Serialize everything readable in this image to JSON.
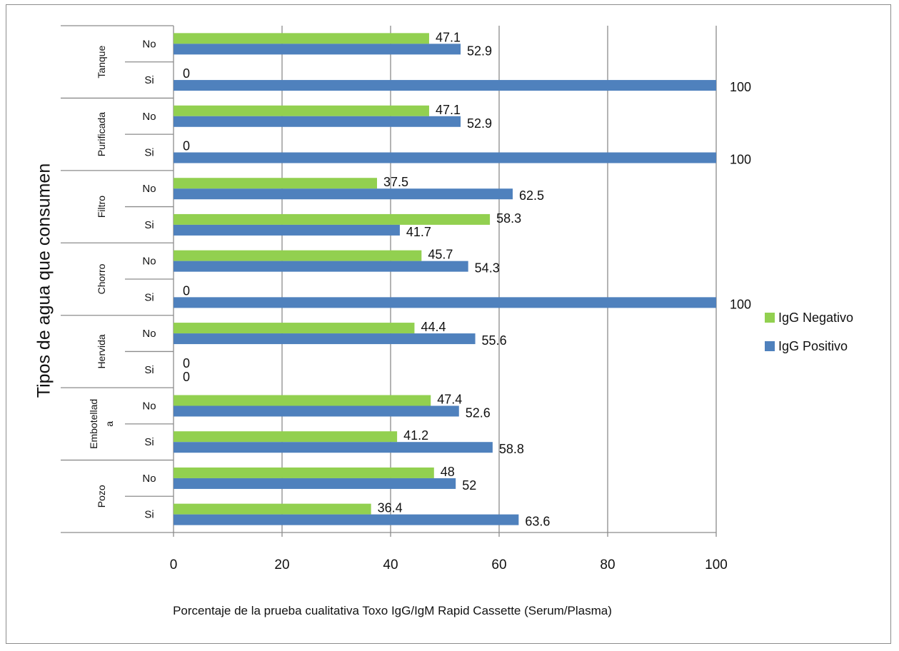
{
  "chart_data": {
    "type": "bar",
    "orientation": "horizontal",
    "ylabel": "Tipos de agua que consumen",
    "xlabel": "Porcentaje de la prueba  cualitativa Toxo IgG/IgM Rapid Cassette (Serum/Plasma)",
    "xlim": [
      0,
      100
    ],
    "xticks": [
      "0",
      "20",
      "40",
      "60",
      "80",
      "100"
    ],
    "grid": true,
    "legend_position": "right",
    "groups": [
      {
        "name": "Tanque",
        "categories": [
          "No",
          "Si"
        ]
      },
      {
        "name": "Purificada",
        "categories": [
          "No",
          "Si"
        ]
      },
      {
        "name": "Filtro",
        "categories": [
          "No",
          "Si"
        ]
      },
      {
        "name": "Chorro",
        "categories": [
          "No",
          "Si"
        ]
      },
      {
        "name": "Hervida",
        "categories": [
          "No",
          "Si"
        ]
      },
      {
        "name": "Embotellad a",
        "categories": [
          "No",
          "Si"
        ]
      },
      {
        "name": "Pozo",
        "categories": [
          "No",
          "Si"
        ]
      }
    ],
    "series": [
      {
        "name": "IgG Negativo",
        "color": "#92d050",
        "values": [
          47.1,
          0,
          47.1,
          0,
          37.5,
          58.3,
          45.7,
          0,
          44.4,
          0,
          47.4,
          41.2,
          48,
          36.4
        ],
        "labels": [
          "47.1",
          "0",
          "47.1",
          "0",
          "37.5",
          "58.3",
          "45.7",
          "0",
          "44.4",
          "0",
          "47.4",
          "41.2",
          "48",
          "36.4"
        ]
      },
      {
        "name": "IgG Positivo",
        "color": "#4f81bd",
        "values": [
          52.9,
          100,
          52.9,
          100,
          62.5,
          41.7,
          54.3,
          100,
          55.6,
          0,
          52.6,
          58.8,
          52,
          63.6
        ],
        "labels": [
          "52.9",
          "100",
          "52.9",
          "100",
          "62.5",
          "41.7",
          "54.3",
          "100",
          "55.6",
          "0",
          "52.6",
          "58.8",
          "52",
          "63.6"
        ]
      }
    ]
  }
}
